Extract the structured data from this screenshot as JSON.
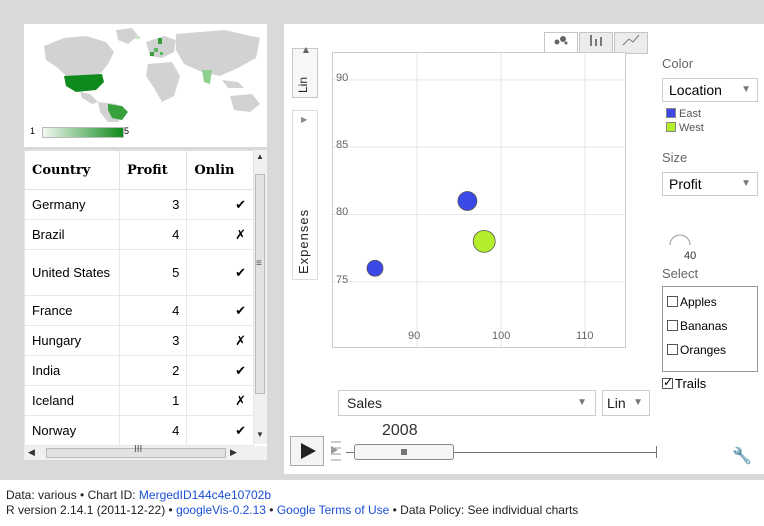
{
  "map": {
    "legend_min": "1",
    "legend_max": "5",
    "highlight_color": "#0f8a1d",
    "land_color": "#d2d2d2"
  },
  "table": {
    "columns": [
      "Country",
      "Profit",
      "Onlin"
    ],
    "rows": [
      {
        "country": "Germany",
        "profit": "3",
        "online": "✔"
      },
      {
        "country": "Brazil",
        "profit": "4",
        "online": "✗"
      },
      {
        "country": "United States",
        "profit": "5",
        "online": "✔"
      },
      {
        "country": "France",
        "profit": "4",
        "online": "✔"
      },
      {
        "country": "Hungary",
        "profit": "3",
        "online": "✗"
      },
      {
        "country": "India",
        "profit": "2",
        "online": "✔"
      },
      {
        "country": "Iceland",
        "profit": "1",
        "online": "✗"
      },
      {
        "country": "Norway",
        "profit": "4",
        "online": "✔"
      }
    ],
    "scroll_grip": "≡",
    "hscroll_grip": "III"
  },
  "motion_chart": {
    "y_scale": "Lin",
    "y_label": "Expenses",
    "x_axis_var": "Sales",
    "x_scale": "Lin",
    "year": "2008",
    "color_label": "Color",
    "color_var": "Location",
    "size_label": "Size",
    "size_var": "Profit",
    "size_value": "40",
    "select_label": "Select",
    "select_items": [
      "Apples",
      "Bananas",
      "Oranges"
    ],
    "trails_label": "Trails",
    "trails_checked": true,
    "legend": [
      {
        "name": "East",
        "color": "#3b49e6"
      },
      {
        "name": "West",
        "color": "#b4ee2a"
      }
    ],
    "tabs": [
      "bubble-icon",
      "bar-icon",
      "line-icon"
    ]
  },
  "chart_data": {
    "type": "scatter",
    "title": "",
    "xlabel": "Sales",
    "ylabel": "Expenses",
    "xlim": [
      80,
      115
    ],
    "ylim": [
      70,
      92
    ],
    "x_ticks": [
      90,
      100,
      110
    ],
    "y_ticks": [
      75,
      80,
      85,
      90
    ],
    "grid": true,
    "legend_placement": "right",
    "points": [
      {
        "x": 85,
        "y": 76,
        "group": "East",
        "color": "#3b49e6",
        "size": 2
      },
      {
        "x": 96,
        "y": 81,
        "group": "East",
        "color": "#3b49e6",
        "size": 3
      },
      {
        "x": 98,
        "y": 78,
        "group": "West",
        "color": "#b4ee2a",
        "size": 4
      }
    ]
  },
  "footer": {
    "line1_prefix": "Data: various • Chart ID: ",
    "chart_id": "MergedID144c4e10702b",
    "line2_prefix": "R version 2.14.1 (2011-12-22) • ",
    "googlevis_link": "googleVis-0.2.13",
    "sep": " • ",
    "terms_link": "Google Terms of Use",
    "line2_suffix": " • Data Policy: See individual charts"
  }
}
